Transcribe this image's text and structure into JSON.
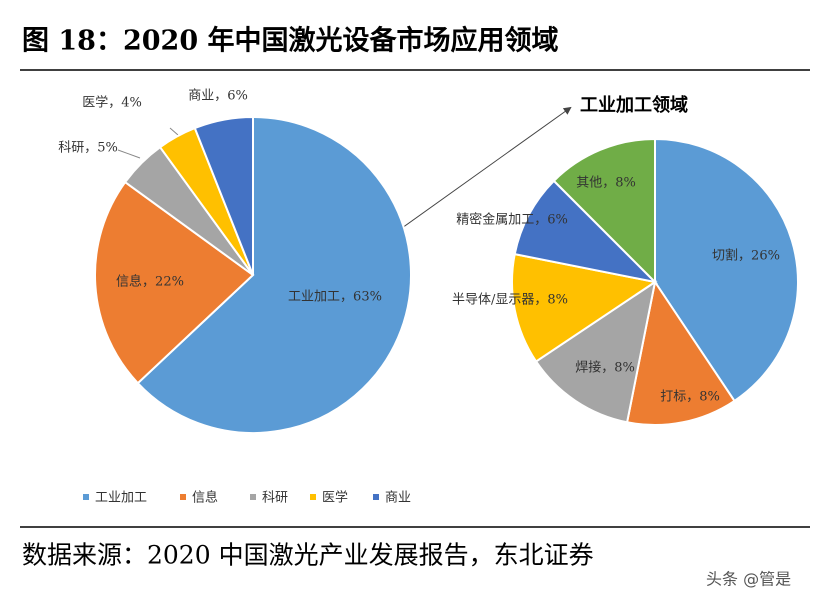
{
  "header": {
    "title": "图 18：2020 年中国激光设备市场应用领域"
  },
  "chart_data": [
    {
      "type": "pie",
      "categories": [
        "工业加工",
        "信息",
        "科研",
        "医学",
        "商业"
      ],
      "values": [
        63,
        22,
        5,
        4,
        6
      ],
      "value_labels": [
        "工业加工，63%",
        "信息，22%",
        "科研，5%",
        "医学，4%",
        "商业，6%"
      ],
      "colors": [
        "#5b9bd5",
        "#ed7d31",
        "#a5a5a5",
        "#ffc000",
        "#4472c4"
      ],
      "legend": "bottom",
      "annotation": "工业加工领域"
    },
    {
      "type": "pie",
      "categories": [
        "切割",
        "打标",
        "焊接",
        "半导体/显示器",
        "精密金属加工",
        "其他"
      ],
      "values": [
        26,
        8,
        8,
        8,
        6,
        8
      ],
      "value_labels": [
        "切割，26%",
        "打标，8%",
        "焊接，8%",
        "半导体/显示器，8%",
        "精密金属加工，6%",
        "其他，8%"
      ],
      "colors": [
        "#5b9bd5",
        "#ed7d31",
        "#a5a5a5",
        "#ffc000",
        "#4472c4",
        "#70ad47"
      ]
    }
  ],
  "footer": {
    "source": "数据来源：2020 中国激光产业发展报告，东北证券",
    "watermark": "头条 @管是"
  }
}
